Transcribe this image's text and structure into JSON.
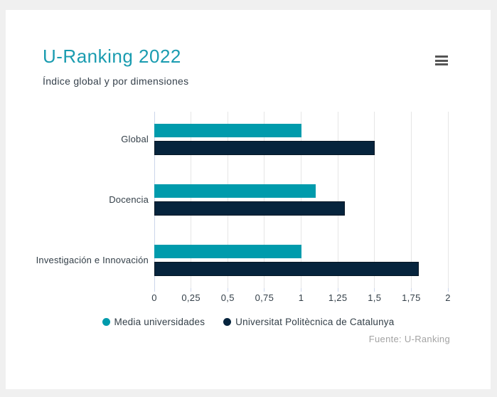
{
  "page": {
    "background_color": "#f0f0f0",
    "card_background": "#ffffff"
  },
  "header": {
    "title": "U-Ranking 2022",
    "subtitle": "Índice global y por dimensiones",
    "title_color": "#1a9cb0",
    "subtitle_color": "#36414c",
    "menu_icon": "hamburger-icon"
  },
  "chart_data": {
    "type": "bar",
    "orientation": "horizontal",
    "categories": [
      "Global",
      "Docencia",
      "Investigación e Innovación"
    ],
    "series": [
      {
        "name": "Media universidades",
        "color": "#009bac",
        "values": [
          1,
          1.1,
          1
        ]
      },
      {
        "name": "Universitat Politècnica de Catalunya",
        "color": "#06243d",
        "values": [
          1.5,
          1.3,
          1.8
        ]
      }
    ],
    "xlim": [
      0,
      2
    ],
    "x_ticks": [
      0,
      0.25,
      0.5,
      0.75,
      1,
      1.25,
      1.5,
      1.75,
      2
    ],
    "x_tick_labels": [
      "0",
      "0,25",
      "0,5",
      "0,75",
      "1",
      "1,25",
      "1,5",
      "1,75",
      "2"
    ],
    "xlabel": "",
    "ylabel": "",
    "grid": true,
    "gridline_color": "#e6e6e6",
    "zeroline_color": "#ccd6eb",
    "legend_position": "bottom"
  },
  "footer": {
    "source": "Fuente: U-Ranking"
  }
}
